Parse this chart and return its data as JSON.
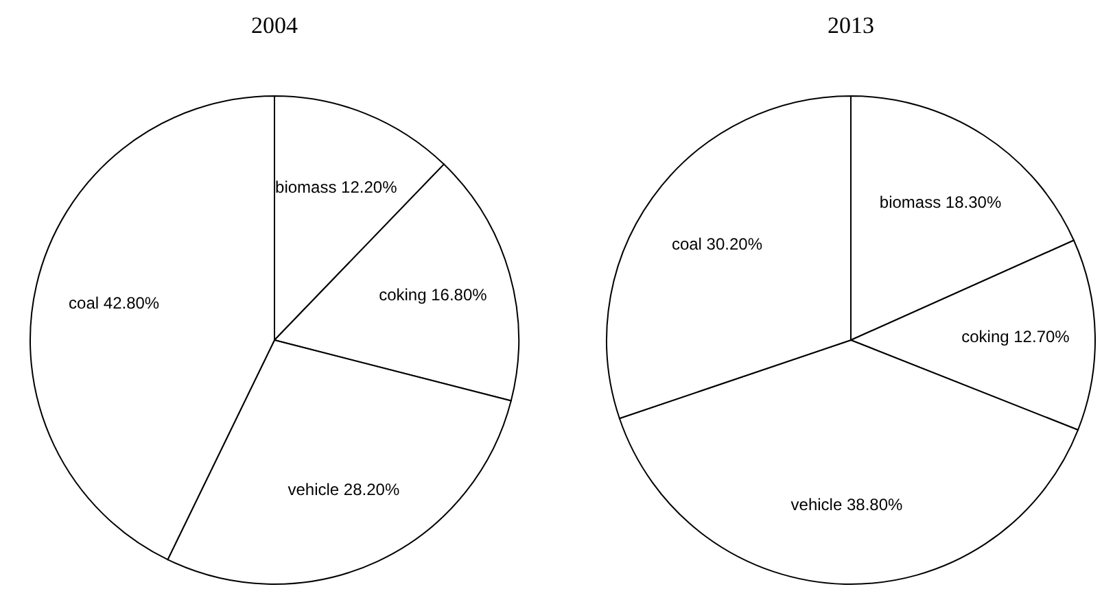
{
  "chart_data": [
    {
      "type": "pie",
      "title": "2004",
      "categories": [
        "biomass",
        "coking",
        "vehicle",
        "coal"
      ],
      "values": [
        12.2,
        16.8,
        28.2,
        42.8
      ],
      "value_labels": [
        "12.20%",
        "16.80%",
        "28.20%",
        "42.80%"
      ],
      "colors": [
        "#ffffff",
        "#ffffff",
        "#ffffff",
        "#ffffff"
      ]
    },
    {
      "type": "pie",
      "title": "2013",
      "categories": [
        "biomass",
        "coking",
        "vehicle",
        "coal"
      ],
      "values": [
        18.3,
        12.7,
        38.8,
        30.2
      ],
      "value_labels": [
        "18.30%",
        "12.70%",
        "38.80%",
        "30.20%"
      ],
      "colors": [
        "#ffffff",
        "#ffffff",
        "#ffffff",
        "#ffffff"
      ]
    }
  ]
}
